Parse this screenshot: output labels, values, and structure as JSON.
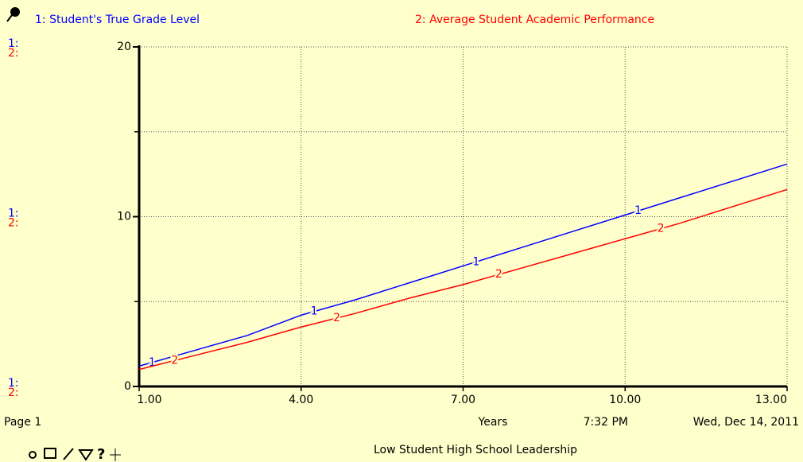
{
  "chart_data": {
    "type": "line",
    "title": "Low Student High School Leadership",
    "page": "Page 1",
    "time": "7:32 PM",
    "date": "Wed, Dec 14, 2011",
    "x_label": "Years",
    "x": [
      1,
      2,
      3,
      4,
      5,
      6,
      7,
      8,
      9,
      10,
      11,
      12,
      13
    ],
    "series": [
      {
        "name": "1: Student's True Grade Level",
        "marker": "1",
        "axis_marker": "1:",
        "color": "#0000ff",
        "values": [
          1.2,
          2.1,
          3.0,
          4.2,
          5.1,
          6.1,
          7.1,
          8.1,
          9.1,
          10.1,
          11.1,
          12.1,
          13.1
        ]
      },
      {
        "name": "2: Average Student Academic Performance",
        "marker": "2",
        "axis_marker": "2:",
        "color": "#ff0000",
        "values": [
          1.0,
          1.8,
          2.6,
          3.5,
          4.3,
          5.2,
          6.0,
          6.9,
          7.8,
          8.7,
          9.6,
          10.6,
          11.6
        ]
      }
    ],
    "xlim": [
      1,
      13
    ],
    "xticks": [
      {
        "value": 1,
        "label": "1.00"
      },
      {
        "value": 4,
        "label": "4.00"
      },
      {
        "value": 7,
        "label": "7.00"
      },
      {
        "value": 10,
        "label": "10.00"
      },
      {
        "value": 13,
        "label": "13.00"
      }
    ],
    "ylim": [
      0,
      20
    ],
    "yticks": [
      0,
      10,
      20
    ],
    "yminorticks": [
      5,
      15
    ],
    "grid": true
  }
}
